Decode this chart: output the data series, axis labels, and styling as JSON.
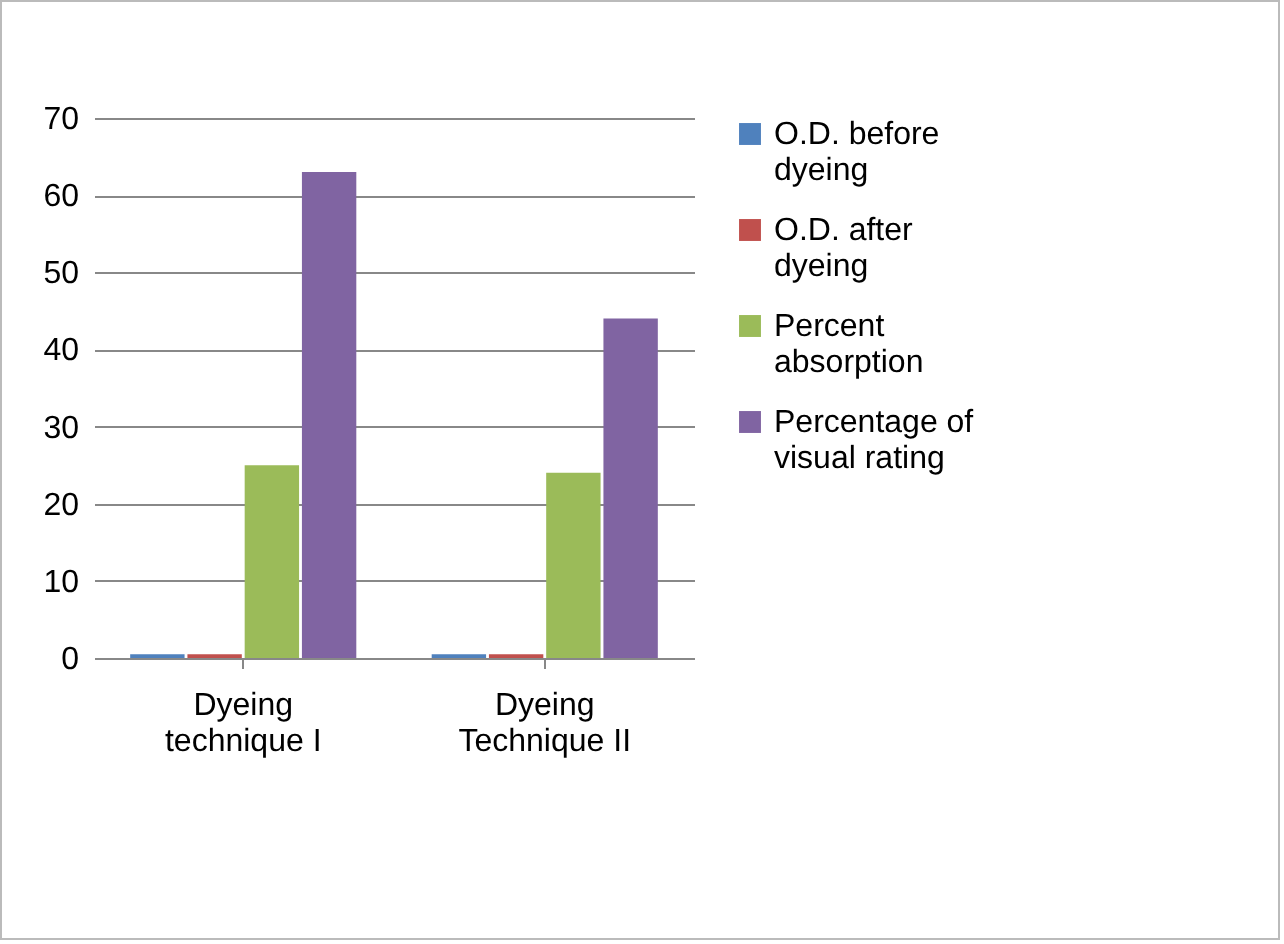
{
  "chart_data": {
    "type": "bar",
    "categories": [
      "Dyeing technique I",
      "Dyeing Technique II"
    ],
    "series": [
      {
        "name": "O.D. before dyeing",
        "color": "#4f81bd",
        "values": [
          0.5,
          0.5
        ]
      },
      {
        "name": "O.D. after dyeing",
        "color": "#c0504d",
        "values": [
          0.5,
          0.5
        ]
      },
      {
        "name": "Percent absorption",
        "color": "#9bbb59",
        "values": [
          25,
          24
        ]
      },
      {
        "name": "Percentage of visual rating",
        "color": "#8064a2",
        "values": [
          63,
          44
        ]
      }
    ],
    "ylim": [
      0,
      70
    ],
    "yticks": [
      0,
      10,
      20,
      30,
      40,
      50,
      60,
      70
    ],
    "grid": "y",
    "legend": "right"
  }
}
